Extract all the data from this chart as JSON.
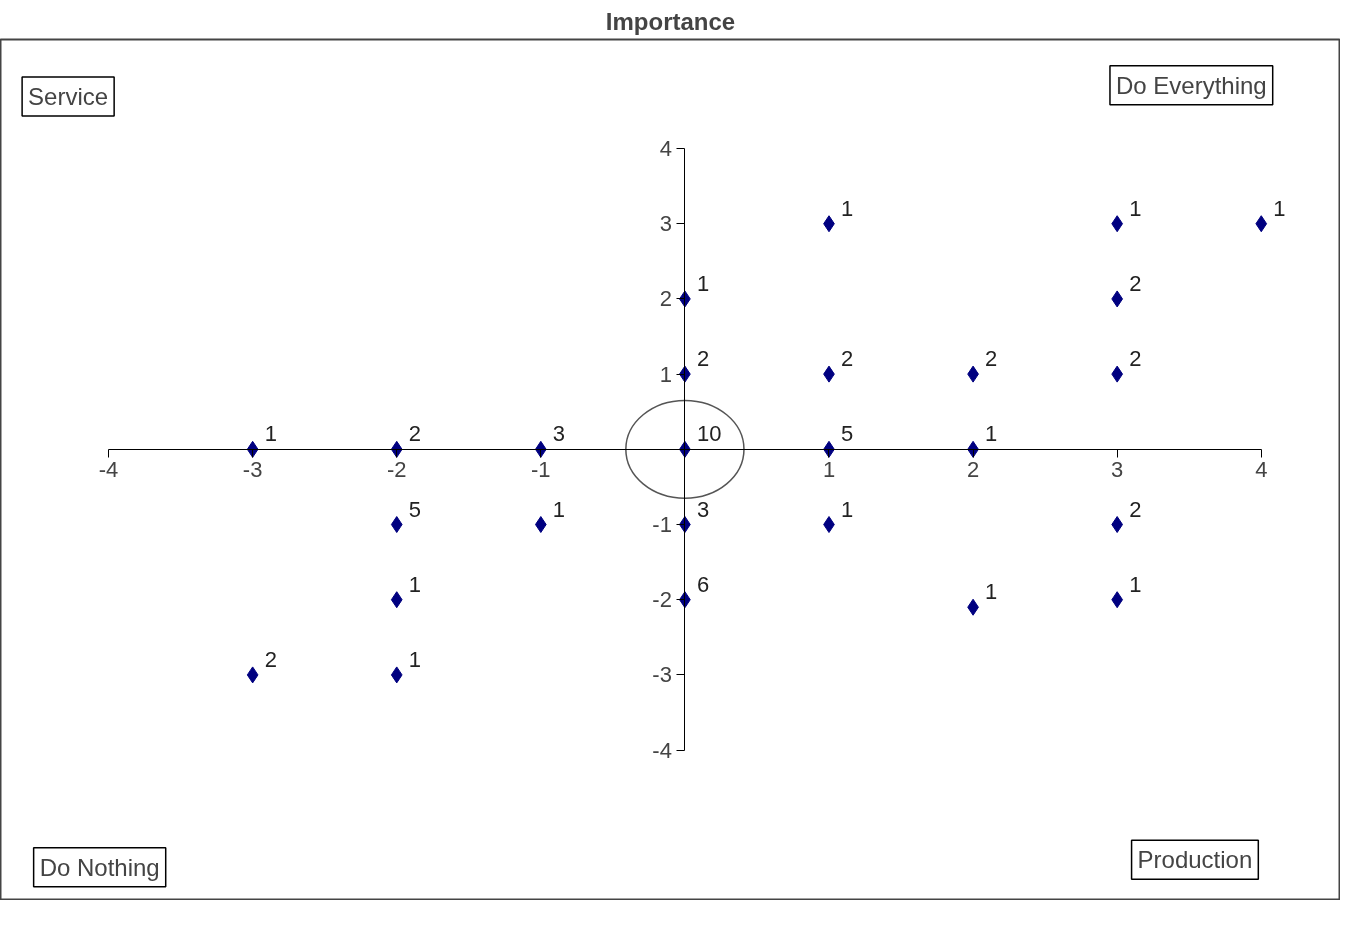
{
  "chart_data": {
    "type": "scatter",
    "title": "Importance",
    "x": [
      -3,
      -2,
      -1,
      0,
      1,
      2,
      0,
      0,
      1,
      1,
      2,
      3,
      3,
      3,
      4,
      -2,
      -1,
      0,
      1,
      3,
      -2,
      0,
      2,
      3,
      -3,
      -2
    ],
    "series": [
      {
        "color": "#000080",
        "values": [
          0,
          0,
          0,
          0,
          0,
          0,
          2,
          1,
          3,
          1,
          1,
          3,
          2,
          1,
          3,
          -1,
          -1,
          -1,
          -1,
          -1,
          -2,
          -2,
          -2.1,
          -2,
          -3,
          -3
        ]
      }
    ],
    "xlim": [
      -4,
      4
    ],
    "ylim": [
      -4,
      4
    ],
    "xticks": [
      -4,
      -3,
      -2,
      -1,
      1,
      2,
      3,
      4
    ],
    "yticks": [
      -4,
      -3,
      -2,
      -1,
      1,
      2,
      3,
      4
    ],
    "annotations": [
      "Service",
      "Do Everything",
      "Do Nothing",
      "Production",
      {
        "text": "1",
        "x": -3,
        "y": 0
      },
      {
        "text": "2",
        "x": -2,
        "y": 0
      },
      {
        "text": "3",
        "x": -1,
        "y": 0
      },
      {
        "text": "10",
        "x": 0,
        "y": 0
      },
      {
        "text": "5",
        "x": 1,
        "y": 0
      },
      {
        "text": "1",
        "x": 2,
        "y": 0
      },
      {
        "text": "1",
        "x": 0,
        "y": 2
      },
      {
        "text": "2",
        "x": 0,
        "y": 1
      },
      {
        "text": "1",
        "x": 1,
        "y": 3
      },
      {
        "text": "2",
        "x": 1,
        "y": 1
      },
      {
        "text": "2",
        "x": 2,
        "y": 1
      },
      {
        "text": "1",
        "x": 3,
        "y": 3
      },
      {
        "text": "2",
        "x": 3,
        "y": 2
      },
      {
        "text": "2",
        "x": 3,
        "y": 1
      },
      {
        "text": "1",
        "x": 4,
        "y": 3
      },
      {
        "text": "5",
        "x": -2,
        "y": -1
      },
      {
        "text": "1",
        "x": -1,
        "y": -1
      },
      {
        "text": "3",
        "x": 0,
        "y": -1
      },
      {
        "text": "1",
        "x": 1,
        "y": -1
      },
      {
        "text": "2",
        "x": 3,
        "y": -1
      },
      {
        "text": "1",
        "x": -2,
        "y": -2
      },
      {
        "text": "6",
        "x": 0,
        "y": -2
      },
      {
        "text": "1",
        "x": 2,
        "y": -2.1
      },
      {
        "text": "1",
        "x": 3,
        "y": -2
      },
      {
        "text": "2",
        "x": -3,
        "y": -3
      },
      {
        "text": "1",
        "x": -2,
        "y": -3
      }
    ],
    "marker": "diamond",
    "grid": false
  }
}
